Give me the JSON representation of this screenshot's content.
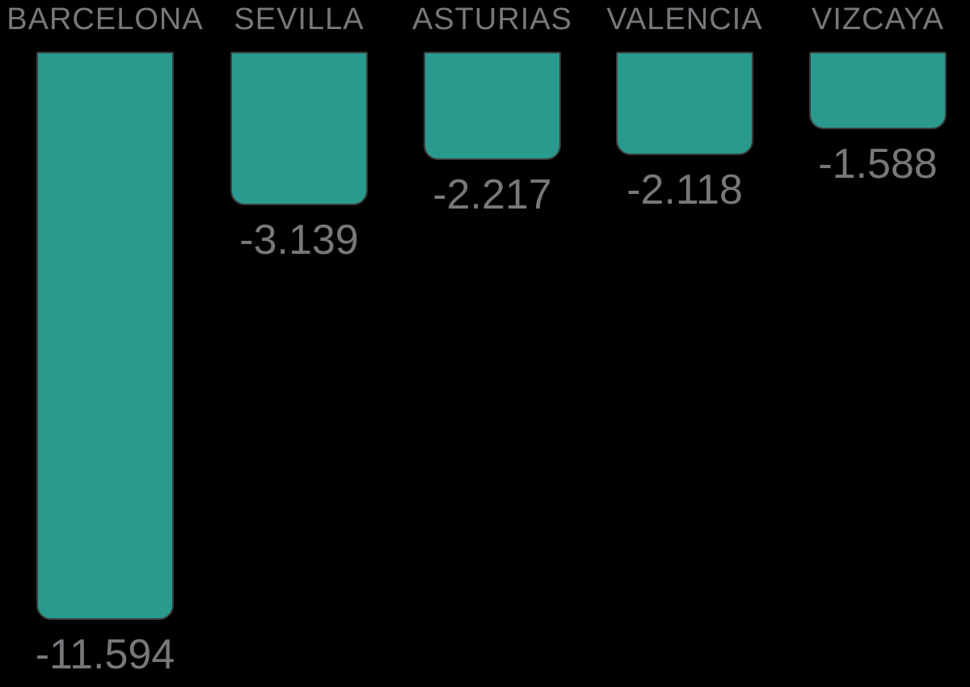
{
  "chart_data": {
    "type": "bar",
    "orientation": "vertical-negative",
    "baseline": "top",
    "title": "",
    "xlabel": "",
    "ylabel": "",
    "grid": false,
    "legend": false,
    "categories": [
      "BARCELONA",
      "SEVILLA",
      "ASTURIAS",
      "VALENCIA",
      "VIZCAYA"
    ],
    "values": [
      -11594,
      -3139,
      -2217,
      -2118,
      -1588
    ],
    "value_labels": [
      "-11.594",
      "-3.139",
      "-2.217",
      "-2.118",
      "-1.588"
    ],
    "value_range": [
      -11594,
      0
    ],
    "bar_color": "#2a9a8e",
    "bar_border_color": "#3b3b3b",
    "label_color": "#77787b",
    "background_color": "#000000"
  }
}
